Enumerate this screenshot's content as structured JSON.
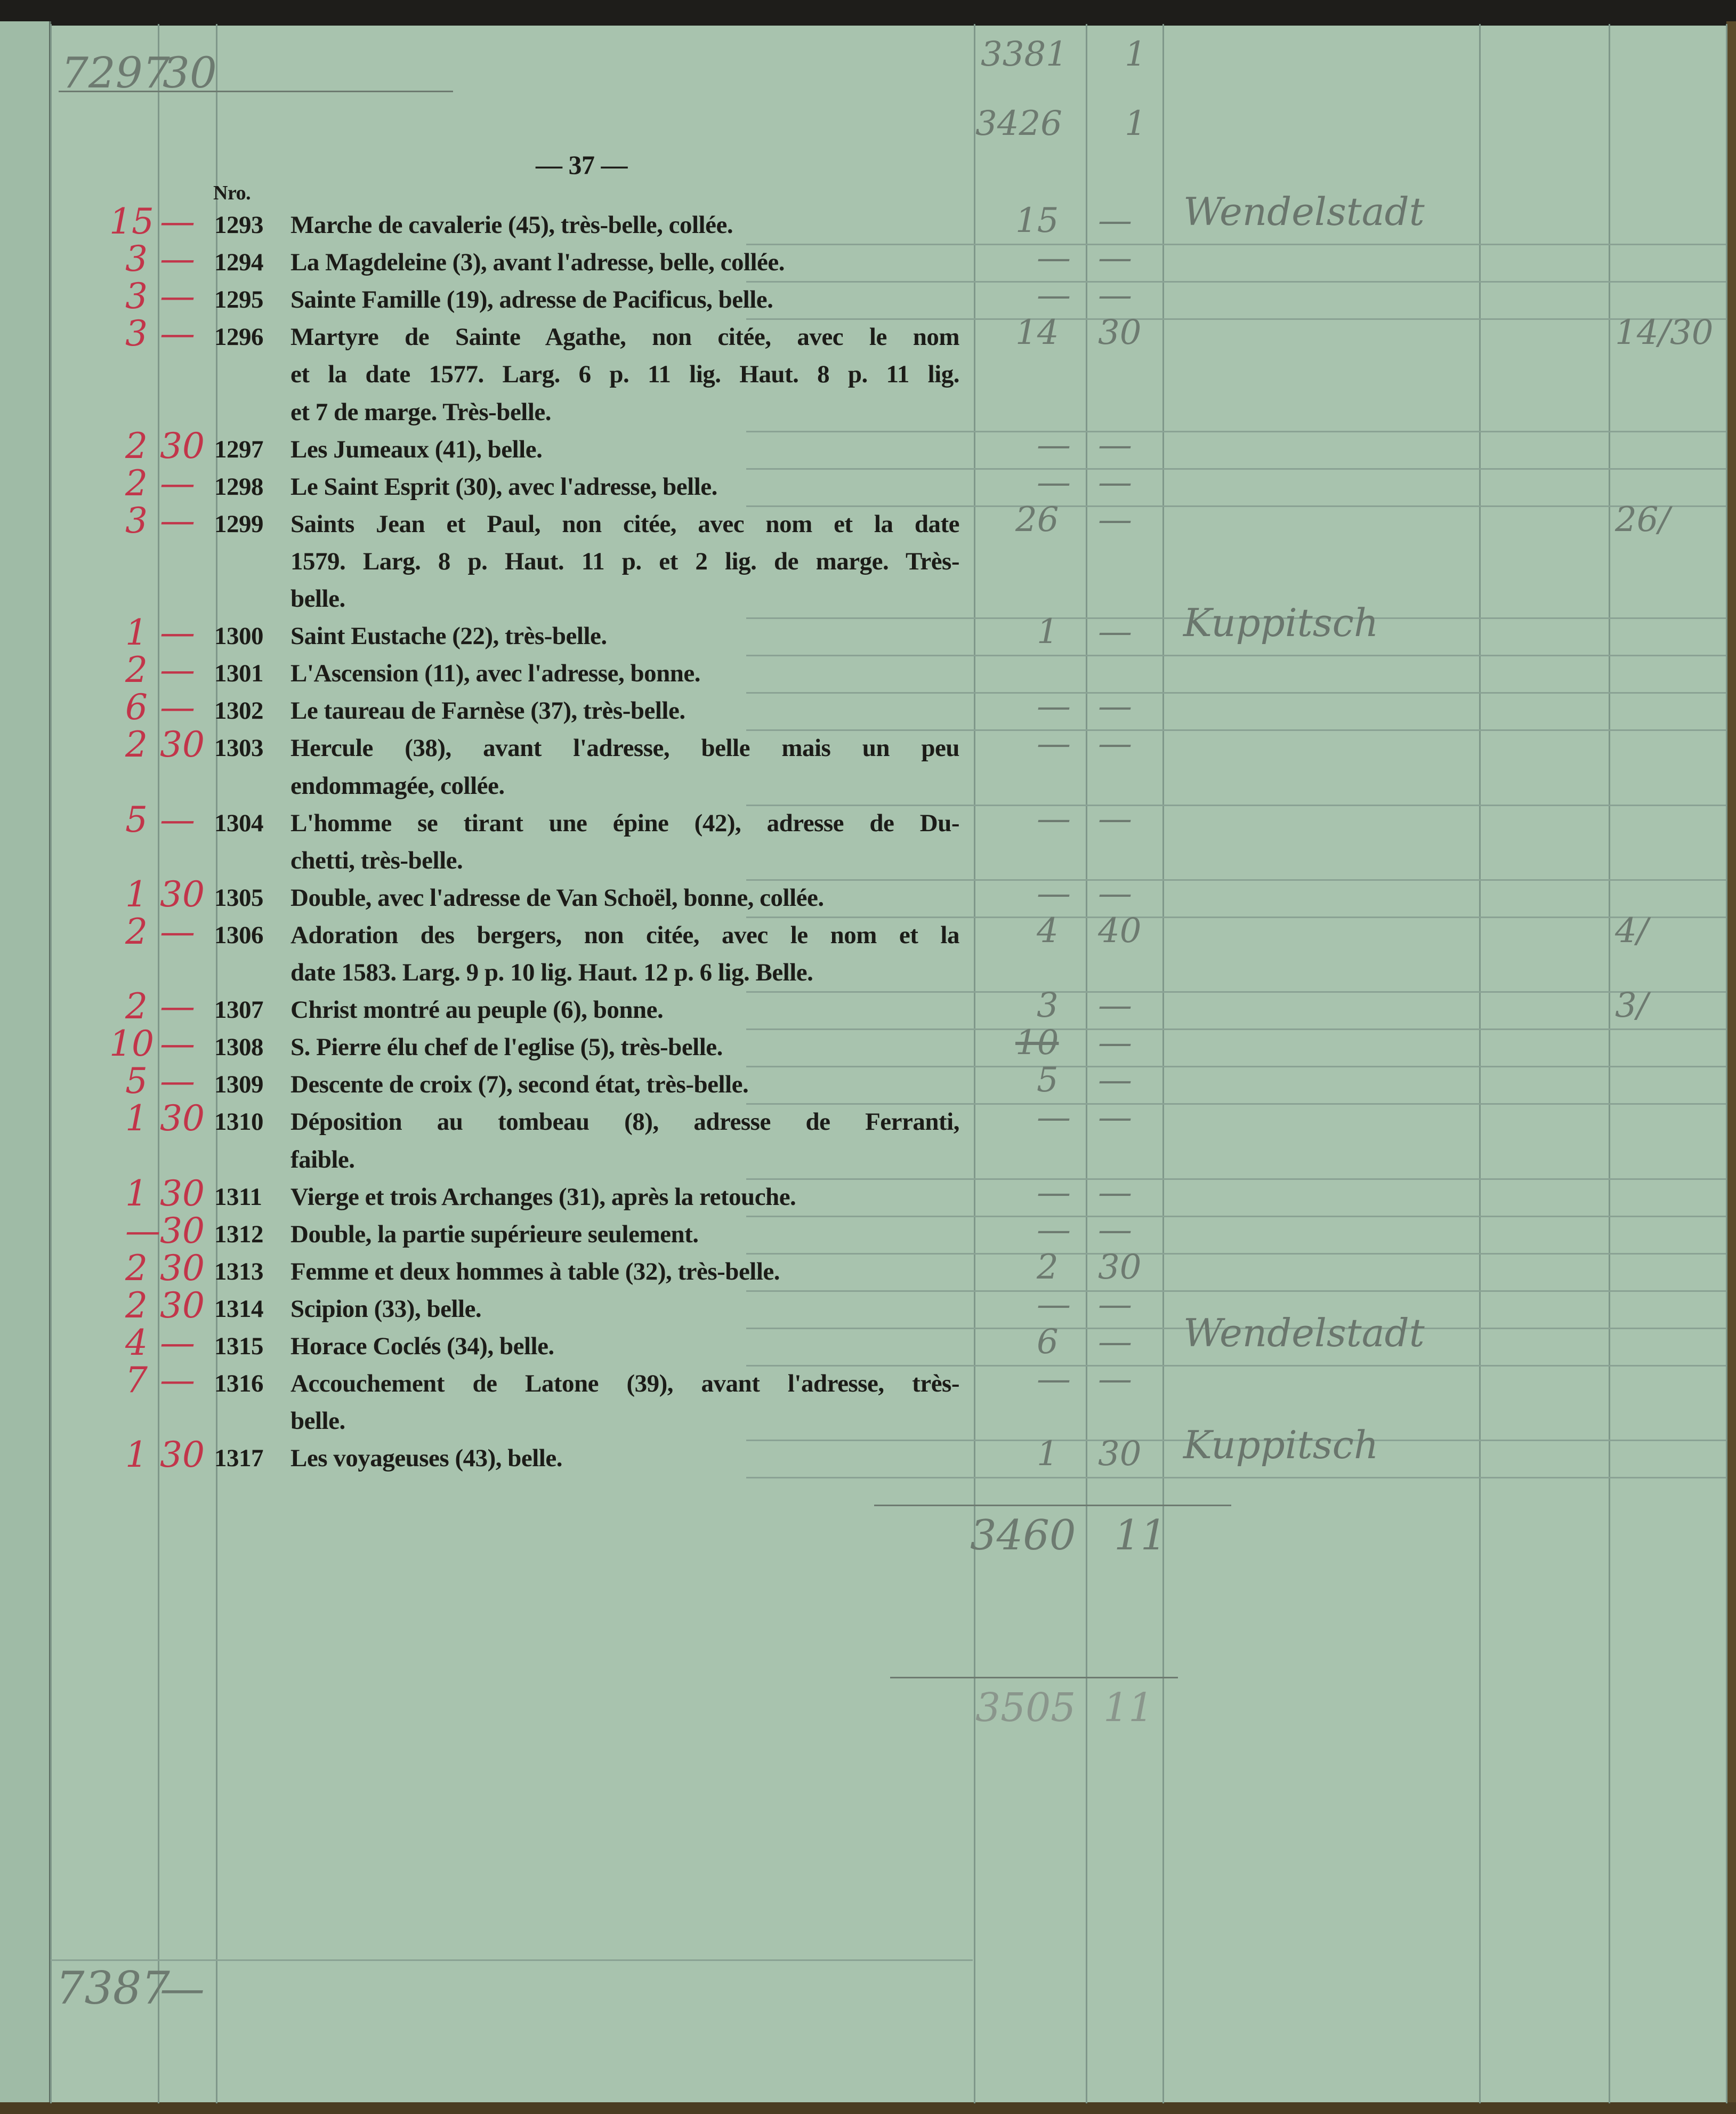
{
  "page_number": "— 37 —",
  "column_header": "Nro.",
  "top_left_note": {
    "a": "7297",
    "b": "30"
  },
  "top_right_carry": [
    {
      "a": "3381",
      "b": "1"
    },
    {
      "a": "3426",
      "b": "1"
    }
  ],
  "subtotal": {
    "a": "3460",
    "b": "11"
  },
  "total": {
    "a": "3505",
    "b": "11"
  },
  "bottom_left_note": {
    "a": "7387",
    "b": "—"
  },
  "colors": {
    "paper": "#a8c3ae",
    "red_ink": "#c2354a",
    "pencil": "#6d7a70",
    "print": "#1c1c18"
  },
  "entries": [
    {
      "no": "1293",
      "lines": [
        "Marche de cavalerie (45), très-belle, collée."
      ],
      "est_a": "15",
      "est_b": "—",
      "price_a": "15",
      "price_b": "—",
      "buyer": "Wendelstadt",
      "note": ""
    },
    {
      "no": "1294",
      "lines": [
        "La Magdeleine (3), avant l'adresse, belle, collée."
      ],
      "est_a": "3",
      "est_b": "—",
      "price_a": "—",
      "price_b": "—",
      "buyer": "",
      "note": ""
    },
    {
      "no": "1295",
      "lines": [
        "Sainte Famille (19), adresse de Pacificus, belle."
      ],
      "est_a": "3",
      "est_b": "—",
      "price_a": "—",
      "price_b": "—",
      "buyer": "",
      "note": ""
    },
    {
      "no": "1296",
      "lines": [
        "Martyre de Sainte Agathe, non citée, avec le nom",
        "et la date 1577. Larg. 6 p. 11 lig. Haut. 8 p. 11 lig.",
        "et 7 de marge. Très-belle."
      ],
      "est_a": "3",
      "est_b": "—",
      "price_a": "14",
      "price_b": "30",
      "buyer": "",
      "note": "14/30"
    },
    {
      "no": "1297",
      "lines": [
        "Les Jumeaux (41), belle."
      ],
      "est_a": "2",
      "est_b": "30",
      "price_a": "—",
      "price_b": "—",
      "buyer": "",
      "note": ""
    },
    {
      "no": "1298",
      "lines": [
        "Le Saint Esprit (30), avec l'adresse, belle."
      ],
      "est_a": "2",
      "est_b": "—",
      "price_a": "—",
      "price_b": "—",
      "buyer": "",
      "note": ""
    },
    {
      "no": "1299",
      "lines": [
        "Saints Jean et Paul, non citée, avec nom et la date",
        "1579. Larg. 8 p. Haut. 11 p. et 2 lig. de marge. Très-",
        "belle."
      ],
      "est_a": "3",
      "est_b": "—",
      "price_a": "26",
      "price_b": "—",
      "buyer": "",
      "note": "26/"
    },
    {
      "no": "1300",
      "lines": [
        "Saint Eustache (22), très-belle."
      ],
      "est_a": "1",
      "est_b": "—",
      "price_a": "1",
      "price_b": "—",
      "buyer": "Kuppitsch",
      "note": ""
    },
    {
      "no": "1301",
      "lines": [
        "L'Ascension (11), avec l'adresse, bonne."
      ],
      "est_a": "2",
      "est_b": "—",
      "price_a": "",
      "price_b": "",
      "buyer": "",
      "note": ""
    },
    {
      "no": "1302",
      "lines": [
        "Le taureau de Farnèse (37), très-belle."
      ],
      "est_a": "6",
      "est_b": "—",
      "price_a": "—",
      "price_b": "—",
      "buyer": "",
      "note": ""
    },
    {
      "no": "1303",
      "lines": [
        "Hercule (38), avant l'adresse, belle mais un peu",
        "endommagée, collée."
      ],
      "est_a": "2",
      "est_b": "30",
      "price_a": "—",
      "price_b": "—",
      "buyer": "",
      "note": ""
    },
    {
      "no": "1304",
      "lines": [
        "L'homme se tirant une épine (42), adresse de Du-",
        "chetti, très-belle."
      ],
      "est_a": "5",
      "est_b": "—",
      "price_a": "—",
      "price_b": "—",
      "buyer": "",
      "note": ""
    },
    {
      "no": "1305",
      "lines": [
        "Double, avec l'adresse de Van Schoël, bonne, collée."
      ],
      "est_a": "1",
      "est_b": "30",
      "price_a": "—",
      "price_b": "—",
      "buyer": "",
      "note": ""
    },
    {
      "no": "1306",
      "lines": [
        "Adoration des bergers, non citée, avec le nom et la",
        "date 1583. Larg. 9 p. 10 lig. Haut. 12 p. 6 lig. Belle."
      ],
      "est_a": "2",
      "est_b": "—",
      "price_a": "4",
      "price_b": "40",
      "buyer": "",
      "note": "4/"
    },
    {
      "no": "1307",
      "lines": [
        "Christ montré au peuple (6), bonne."
      ],
      "est_a": "2",
      "est_b": "—",
      "price_a": "3",
      "price_b": "—",
      "buyer": "",
      "note": "3/"
    },
    {
      "no": "1308",
      "lines": [
        "S. Pierre élu chef de l'eglise (5), très-belle."
      ],
      "est_a": "10",
      "est_b": "—",
      "price_a": "10",
      "price_b": "—",
      "price_struck": true,
      "buyer": "",
      "note": ""
    },
    {
      "no": "1309",
      "lines": [
        "Descente de croix (7), second état, très-belle."
      ],
      "est_a": "5",
      "est_b": "—",
      "price_a": "5",
      "price_b": "—",
      "buyer": "",
      "note": ""
    },
    {
      "no": "1310",
      "lines": [
        "Déposition au tombeau (8), adresse de Ferranti,",
        "faible."
      ],
      "est_a": "1",
      "est_b": "30",
      "price_a": "—",
      "price_b": "—",
      "buyer": "",
      "note": ""
    },
    {
      "no": "1311",
      "lines": [
        "Vierge et trois Archanges (31), après la retouche."
      ],
      "est_a": "1",
      "est_b": "30",
      "price_a": "—",
      "price_b": "—",
      "buyer": "",
      "note": ""
    },
    {
      "no": "1312",
      "lines": [
        "Double, la partie supérieure seulement."
      ],
      "est_a": "—",
      "est_b": "30",
      "price_a": "—",
      "price_b": "—",
      "buyer": "",
      "note": ""
    },
    {
      "no": "1313",
      "lines": [
        "Femme et deux hommes à table (32), très-belle."
      ],
      "est_a": "2",
      "est_b": "30",
      "price_a": "2",
      "price_b": "30",
      "buyer": "",
      "note": ""
    },
    {
      "no": "1314",
      "lines": [
        "Scipion (33), belle."
      ],
      "est_a": "2",
      "est_b": "30",
      "price_a": "—",
      "price_b": "—",
      "buyer": "",
      "note": ""
    },
    {
      "no": "1315",
      "lines": [
        "Horace Coclés (34), belle."
      ],
      "est_a": "4",
      "est_b": "—",
      "price_a": "6",
      "price_b": "—",
      "buyer": "Wendelstadt",
      "note": ""
    },
    {
      "no": "1316",
      "lines": [
        "Accouchement de Latone (39), avant l'adresse, très-",
        "belle."
      ],
      "est_a": "7",
      "est_b": "—",
      "price_a": "—",
      "price_b": "—",
      "buyer": "",
      "note": ""
    },
    {
      "no": "1317",
      "lines": [
        "Les voyageuses (43), belle."
      ],
      "est_a": "1",
      "est_b": "30",
      "price_a": "1",
      "price_b": "30",
      "buyer": "Kuppitsch",
      "note": ""
    }
  ]
}
